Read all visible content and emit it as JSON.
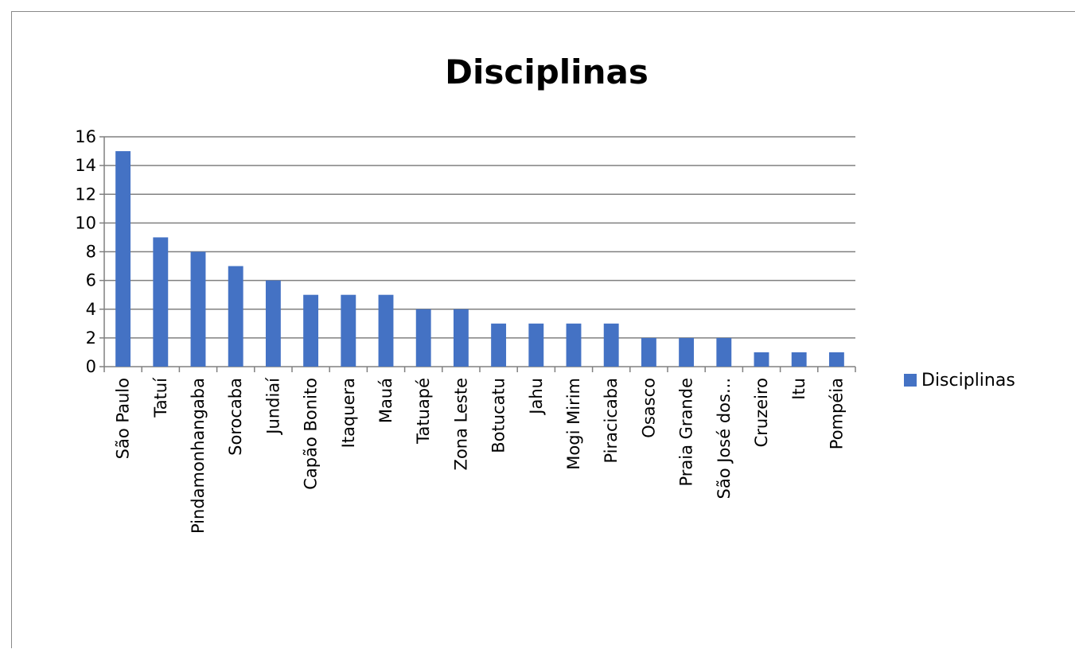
{
  "chart_data": {
    "type": "bar",
    "title": "Disciplinas",
    "xlabel": "",
    "ylabel": "",
    "ylim": [
      0,
      16
    ],
    "y_ticks": [
      0,
      2,
      4,
      6,
      8,
      10,
      12,
      14,
      16
    ],
    "grid": true,
    "legend_position": "right",
    "categories": [
      "São Paulo",
      "Tatuí",
      "Pindamonhangaba",
      "Sorocaba",
      "Jundiaí",
      "Capão Bonito",
      "Itaquera",
      "Mauá",
      "Tatuapé",
      "Zona Leste",
      "Botucatu",
      "Jahu",
      "Mogi Mirim",
      "Piracicaba",
      "Osasco",
      "Praia Grande",
      "São José dos...",
      "Cruzeiro",
      "Itu",
      "Pompéia"
    ],
    "series": [
      {
        "name": "Disciplinas",
        "color": "#4472c4",
        "values": [
          15,
          9,
          8,
          7,
          6,
          5,
          5,
          5,
          4,
          4,
          3,
          3,
          3,
          3,
          2,
          2,
          2,
          1,
          1,
          1
        ]
      }
    ]
  }
}
